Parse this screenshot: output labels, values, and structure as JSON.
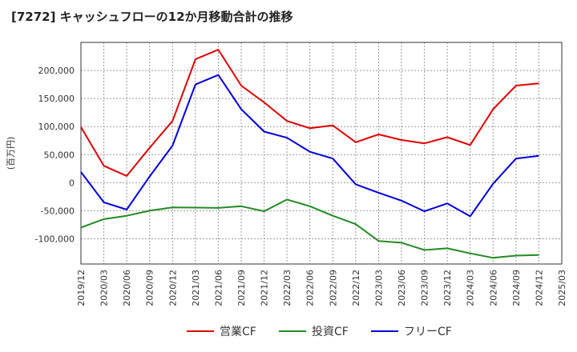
{
  "chart_data": {
    "type": "line",
    "title": "[7272]  キャッシュフローの12か月移動合計の推移",
    "ylabel": "(百万円)",
    "xlabel": "",
    "ylim": [
      -145000,
      250000
    ],
    "yticks": [
      -100000,
      -50000,
      0,
      50000,
      100000,
      150000,
      200000
    ],
    "ytick_labels": [
      "-100,000",
      "-50,000",
      "0",
      "50,000",
      "100,000",
      "150,000",
      "200,000"
    ],
    "x_axis_labels": [
      "2019/12",
      "2020/03",
      "2020/06",
      "2020/09",
      "2020/12",
      "2021/03",
      "2021/06",
      "2021/09",
      "2021/12",
      "2022/03",
      "2022/06",
      "2022/09",
      "2022/12",
      "2023/03",
      "2023/06",
      "2023/09",
      "2023/12",
      "2024/03",
      "2024/06",
      "2024/09",
      "2024/12",
      "2025/03"
    ],
    "categories": [
      "2019/12",
      "2020/03",
      "2020/06",
      "2020/09",
      "2020/12",
      "2021/03",
      "2021/06",
      "2021/09",
      "2021/12",
      "2022/03",
      "2022/06",
      "2022/09",
      "2022/12",
      "2023/03",
      "2023/06",
      "2023/09",
      "2023/12",
      "2024/03",
      "2024/06",
      "2024/09",
      "2024/12"
    ],
    "grid": true,
    "legend_position": "bottom",
    "series": [
      {
        "name": "営業CF",
        "color": "#e00000",
        "values": [
          99000,
          30000,
          12000,
          62000,
          110000,
          220000,
          237000,
          173000,
          143000,
          110000,
          97000,
          102000,
          72000,
          86000,
          76000,
          70000,
          81000,
          67000,
          131000,
          173000,
          177000
        ]
      },
      {
        "name": "投資CF",
        "color": "#228b22",
        "values": [
          -80000,
          -65000,
          -59000,
          -50000,
          -44000,
          -44500,
          -45000,
          -42000,
          -51000,
          -30000,
          -42000,
          -59000,
          -74000,
          -104000,
          -107000,
          -120000,
          -117000,
          -126000,
          -134000,
          -130000,
          -129000
        ]
      },
      {
        "name": "フリーCF",
        "color": "#0000dd",
        "values": [
          19000,
          -35000,
          -48000,
          11000,
          66000,
          175000,
          192000,
          131000,
          91000,
          80000,
          55000,
          43000,
          -3000,
          -18000,
          -32000,
          -51000,
          -37000,
          -60000,
          -2000,
          43000,
          48000
        ]
      }
    ]
  }
}
